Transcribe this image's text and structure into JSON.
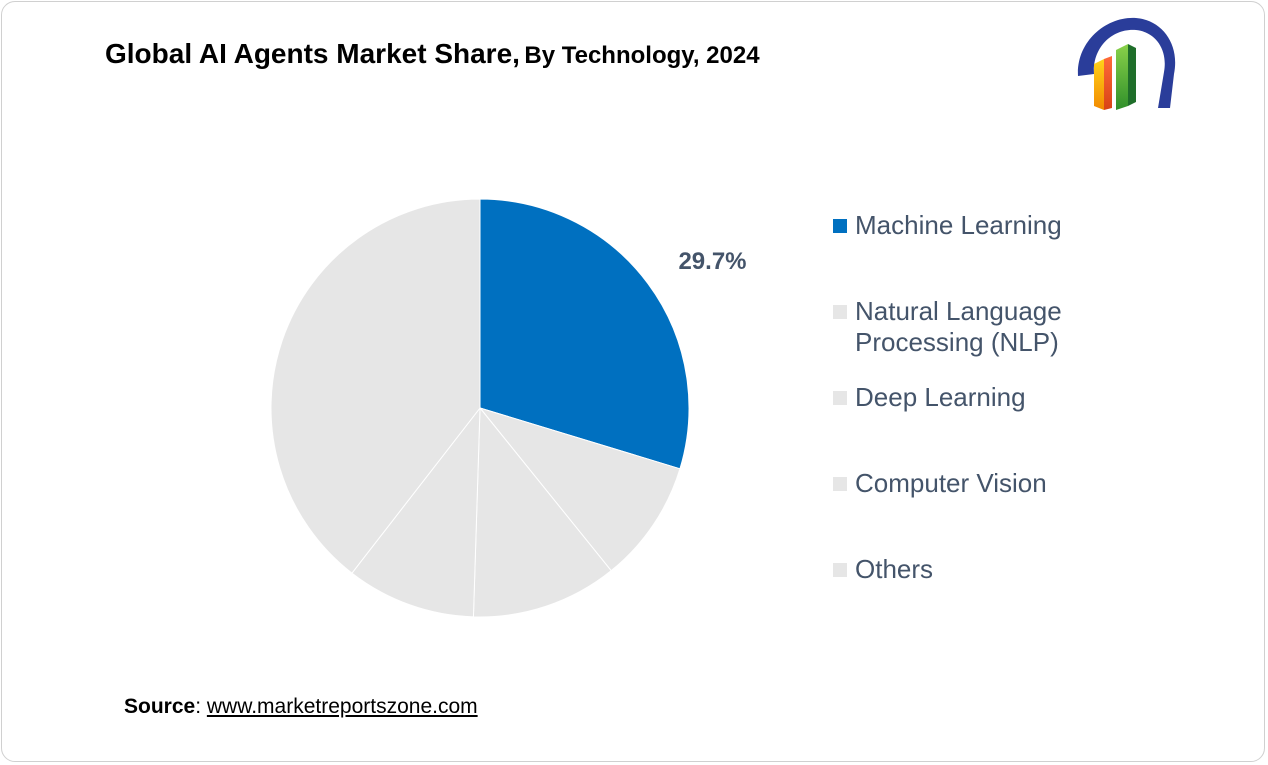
{
  "title": {
    "main": "Global AI Agents Market Share,",
    "sub": "By Technology, 2024"
  },
  "colors": {
    "accent": "#0070c0",
    "muted_slice": "#e6e6e6",
    "legend_text": "#44546a"
  },
  "chart_data": {
    "type": "pie",
    "title": "Global AI Agents Market Share, By Technology, 2024",
    "categories": [
      "Machine Learning",
      "Natural Language Processing (NLP)",
      "Deep Learning",
      "Computer Vision",
      "Others"
    ],
    "series": [
      {
        "values": [
          29.7,
          9.5,
          11.3,
          10.0,
          39.5
        ],
        "colors": [
          "#0070c0",
          "#e6e6e6",
          "#e6e6e6",
          "#e6e6e6",
          "#e6e6e6"
        ]
      }
    ],
    "data_labels": [
      "29.7%",
      "",
      "",
      "",
      ""
    ],
    "legend_position": "right"
  },
  "legend": {
    "items": [
      {
        "label": "Machine Learning",
        "color": "#0070c0"
      },
      {
        "label": "Natural Language\nProcessing (NLP)",
        "color": "#e6e6e6"
      },
      {
        "label": "Deep Learning",
        "color": "#e6e6e6"
      },
      {
        "label": "Computer Vision",
        "color": "#e6e6e6"
      },
      {
        "label": "Others",
        "color": "#e6e6e6"
      }
    ]
  },
  "source": {
    "label": "Source",
    "separator": ": ",
    "link": "www.marketreportszone.com"
  },
  "logo": {
    "icon": "market-reports-zone-logo"
  }
}
